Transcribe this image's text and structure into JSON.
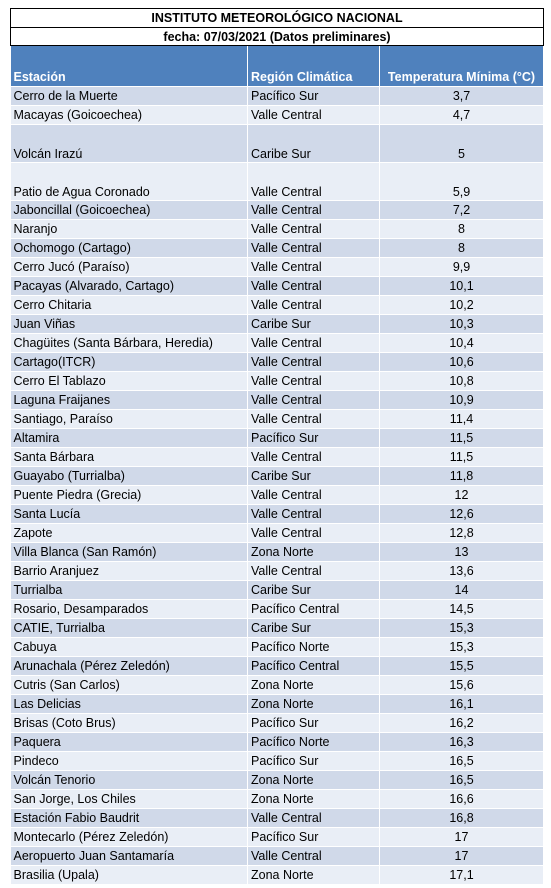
{
  "header": {
    "title": "INSTITUTO METEOROLÓGICO NACIONAL",
    "date": "fecha: 07/03/2021 (Datos preliminares)"
  },
  "columns": [
    "Estación",
    "Región Climática",
    "Temperatura Mínima (°C)"
  ],
  "rows": [
    {
      "station": "Cerro de la Muerte",
      "region": "Pacífico Sur",
      "temp": "3,7"
    },
    {
      "station": "Macayas (Goicoechea)",
      "region": "Valle Central",
      "temp": "4,7"
    },
    {
      "station": "Volcán Irazú",
      "region": "Caribe Sur",
      "temp": "5"
    },
    {
      "station": "Patio de Agua Coronado",
      "region": "Valle Central",
      "temp": "5,9"
    },
    {
      "station": "Jaboncillal (Goicoechea)",
      "region": "Valle Central",
      "temp": "7,2"
    },
    {
      "station": "Naranjo",
      "region": "Valle Central",
      "temp": "8"
    },
    {
      "station": "Ochomogo (Cartago)",
      "region": "Valle Central",
      "temp": "8"
    },
    {
      "station": "Cerro Jucó (Paraíso)",
      "region": "Valle Central",
      "temp": "9,9"
    },
    {
      "station": "Pacayas (Alvarado, Cartago)",
      "region": "Valle Central",
      "temp": "10,1"
    },
    {
      "station": "Cerro Chitaria",
      "region": "Valle Central",
      "temp": "10,2"
    },
    {
      "station": "Juan Viñas",
      "region": "Caribe Sur",
      "temp": "10,3"
    },
    {
      "station": "Chagüites (Santa Bárbara, Heredia)",
      "region": "Valle Central",
      "temp": "10,4"
    },
    {
      "station": "Cartago(ITCR)",
      "region": "Valle Central",
      "temp": "10,6"
    },
    {
      "station": "Cerro El Tablazo",
      "region": "Valle Central",
      "temp": "10,8"
    },
    {
      "station": "Laguna Fraijanes",
      "region": "Valle Central",
      "temp": "10,9"
    },
    {
      "station": "Santiago, Paraíso",
      "region": "Valle Central",
      "temp": "11,4"
    },
    {
      "station": "Altamira",
      "region": "Pacífico Sur",
      "temp": "11,5"
    },
    {
      "station": "Santa Bárbara",
      "region": "Valle Central",
      "temp": "11,5"
    },
    {
      "station": "Guayabo (Turrialba)",
      "region": "Caribe Sur",
      "temp": "11,8"
    },
    {
      "station": "Puente Piedra (Grecia)",
      "region": "Valle Central",
      "temp": "12"
    },
    {
      "station": "Santa Lucía",
      "region": "Valle Central",
      "temp": "12,6"
    },
    {
      "station": "Zapote",
      "region": "Valle Central",
      "temp": "12,8"
    },
    {
      "station": "Villa Blanca (San Ramón)",
      "region": "Zona Norte",
      "temp": "13"
    },
    {
      "station": "Barrio Aranjuez",
      "region": "Valle Central",
      "temp": "13,6"
    },
    {
      "station": "Turrialba",
      "region": "Caribe Sur",
      "temp": "14"
    },
    {
      "station": "Rosario, Desamparados",
      "region": "Pacífico Central",
      "temp": "14,5"
    },
    {
      "station": "CATIE, Turrialba",
      "region": "Caribe Sur",
      "temp": "15,3"
    },
    {
      "station": "Cabuya",
      "region": "Pacífico Norte",
      "temp": "15,3"
    },
    {
      "station": "Arunachala (Pérez Zeledón)",
      "region": "Pacífico Central",
      "temp": "15,5"
    },
    {
      "station": "Cutris (San Carlos)",
      "region": "Zona Norte",
      "temp": "15,6"
    },
    {
      "station": "Las Delicias",
      "region": "Zona Norte",
      "temp": "16,1"
    },
    {
      "station": "Brisas (Coto Brus)",
      "region": "Pacífico Sur",
      "temp": "16,2"
    },
    {
      "station": "Paquera",
      "region": "Pacífico Norte",
      "temp": "16,3"
    },
    {
      "station": "Pindeco",
      "region": "Pacífico Sur",
      "temp": "16,5"
    },
    {
      "station": "Volcán Tenorio",
      "region": "Zona Norte",
      "temp": "16,5"
    },
    {
      "station": "San Jorge, Los Chiles",
      "region": "Zona Norte",
      "temp": "16,6"
    },
    {
      "station": "Estación Fabio Baudrit",
      "region": "Valle Central",
      "temp": "16,8"
    },
    {
      "station": "Montecarlo (Pérez Zeledón)",
      "region": "Pacífico Sur",
      "temp": "17"
    },
    {
      "station": "Aeropuerto Juan Santamaría",
      "region": "Valle Central",
      "temp": "17"
    },
    {
      "station": "Brasilia (Upala)",
      "region": "Zona Norte",
      "temp": "17,1"
    }
  ]
}
